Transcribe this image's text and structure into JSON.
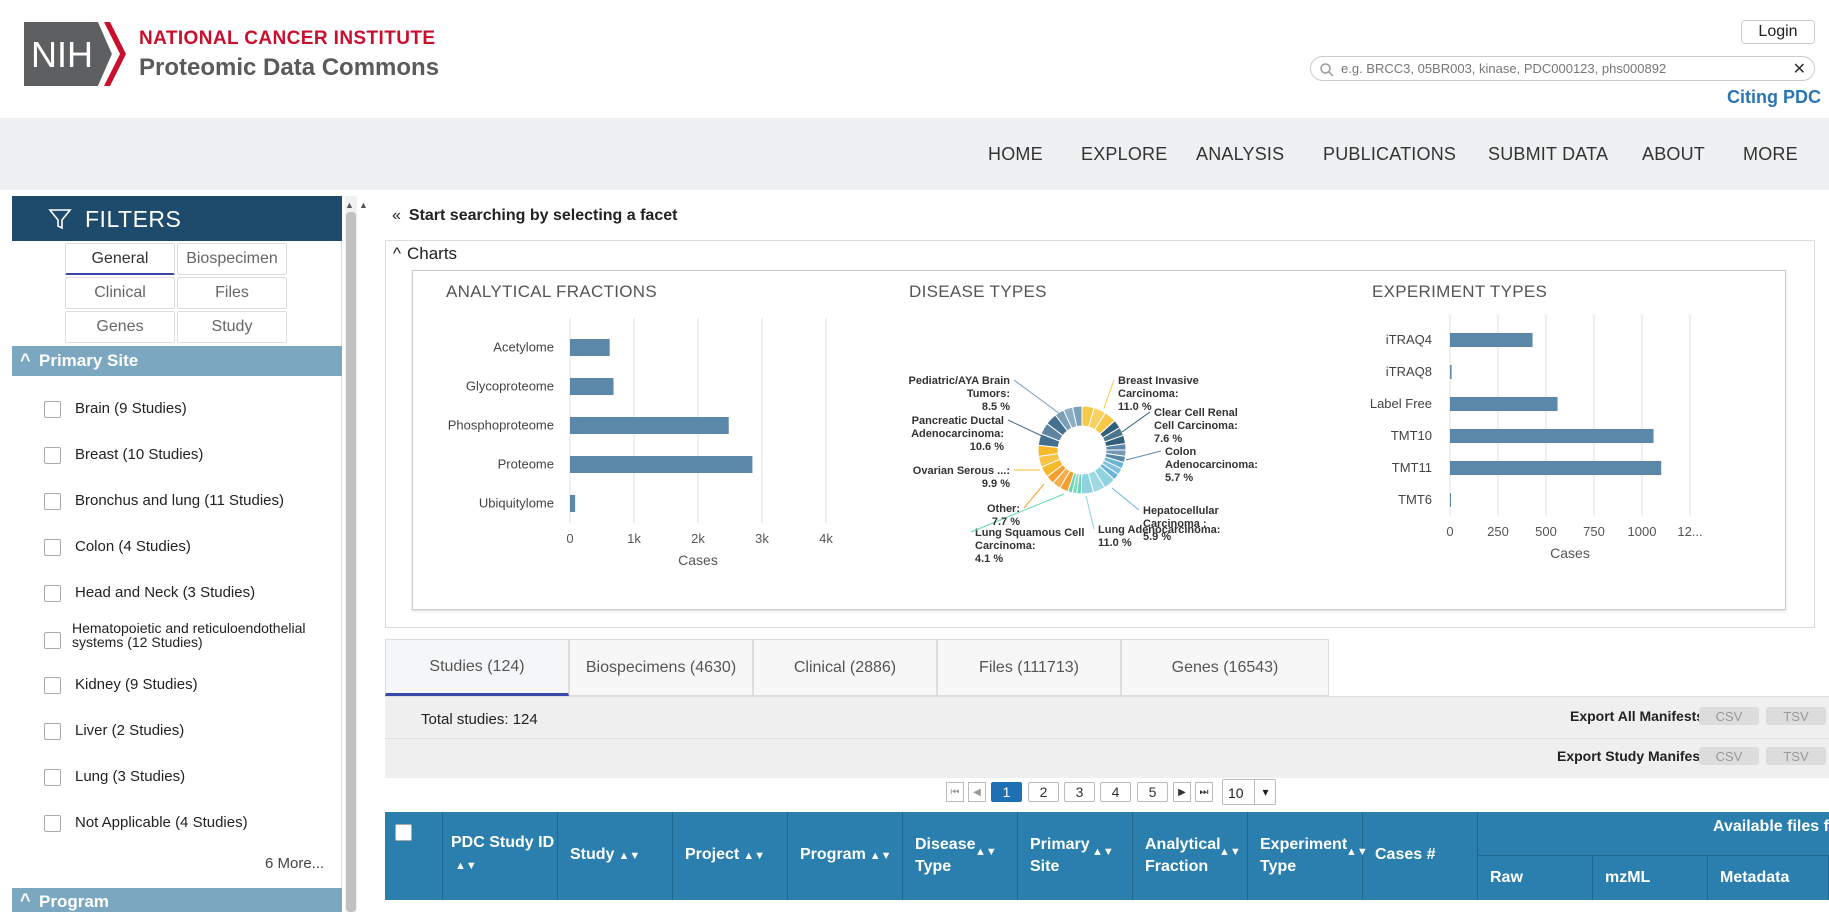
{
  "header": {
    "org": "NATIONAL CANCER INSTITUTE",
    "site": "Proteomic Data Commons",
    "login": "Login",
    "search_placeholder": "e.g. BRCC3, 05BR003, kinase, PDC000123, phs000892",
    "citing": "Citing PDC",
    "logo_text": "NIH"
  },
  "nav": [
    "HOME",
    "EXPLORE",
    "ANALYSIS",
    "PUBLICATIONS",
    "SUBMIT DATA",
    "ABOUT",
    "MORE"
  ],
  "sidebar": {
    "title": "FILTERS",
    "tabs": [
      "General",
      "Biospecimen",
      "Clinical",
      "Files",
      "Genes",
      "Study"
    ],
    "primary_site_label": "Primary Site",
    "sites": [
      "Brain (9 Studies)",
      "Breast (10 Studies)",
      "Bronchus and lung (11 Studies)",
      "Colon (4 Studies)",
      "Head and Neck (3 Studies)",
      "Hematopoietic and reticuloendothelial systems (12 Studies)",
      "Kidney (9 Studies)",
      "Liver (2 Studies)",
      "Lung (3 Studies)",
      "Not Applicable (4 Studies)"
    ],
    "more": "6 More...",
    "program_label": "Program"
  },
  "main": {
    "facet_hint": "Start searching by selecting a facet",
    "charts_label": "Charts"
  },
  "chart_data": [
    {
      "type": "bar",
      "title": "ANALYTICAL FRACTIONS",
      "categories": [
        "Acetylome",
        "Glycoproteome",
        "Phosphoproteome",
        "Proteome",
        "Ubiquitylome"
      ],
      "values": [
        620,
        680,
        2480,
        2850,
        80
      ],
      "xlabel": "Cases",
      "xlim": [
        0,
        4000
      ],
      "ticks": [
        "0",
        "1k",
        "2k",
        "3k",
        "4k"
      ],
      "bar_color": "#5b87a8"
    },
    {
      "type": "pie",
      "title": "DISEASE TYPES",
      "slices": [
        {
          "label": "Breast Invasive Carcinoma:",
          "pct": "11.0 %",
          "value": 11.0
        },
        {
          "label": "Clear Cell Renal Cell Carcinoma:",
          "pct": "7.6 %",
          "value": 7.6
        },
        {
          "label": "Colon Adenocarcinoma:",
          "pct": "5.7 %",
          "value": 5.7
        },
        {
          "label": "Hepatocellular Carcinoma :",
          "pct": "5.9 %",
          "value": 5.9
        },
        {
          "label": "Lung Adenocarcinoma:",
          "pct": "11.0 %",
          "value": 11.0
        },
        {
          "label": "Lung Squamous Cell Carcinoma:",
          "pct": "4.1 %",
          "value": 4.1
        },
        {
          "label": "Other:",
          "pct": "7.7 %",
          "value": 7.7
        },
        {
          "label": "Ovarian Serous ...:",
          "pct": "9.9 %",
          "value": 9.9
        },
        {
          "label": "Pancreatic Ductal Adenocarcinoma:",
          "pct": "10.6 %",
          "value": 10.6
        },
        {
          "label": "Pediatric/AYA Brain Tumors:",
          "pct": "8.5 %",
          "value": 8.5
        }
      ]
    },
    {
      "type": "bar",
      "title": "EXPERIMENT TYPES",
      "categories": [
        "iTRAQ4",
        "iTRAQ8",
        "Label Free",
        "TMT10",
        "TMT11",
        "TMT6"
      ],
      "values": [
        430,
        8,
        560,
        1060,
        1100,
        2
      ],
      "xlabel": "Cases",
      "xlim": [
        0,
        1250
      ],
      "ticks": [
        "0",
        "250",
        "500",
        "750",
        "1000",
        "12..."
      ],
      "bar_color": "#5b87a8"
    }
  ],
  "tabs": [
    "Studies (124)",
    "Biospecimens (4630)",
    "Clinical (2886)",
    "Files (111713)",
    "Genes (16543)"
  ],
  "summary": {
    "total": "Total studies: 124",
    "export_all": "Export All Manifests",
    "export_study": "Export Study Manifest",
    "csv": "CSV",
    "tsv": "TSV"
  },
  "pager": {
    "pages": [
      "1",
      "2",
      "3",
      "4",
      "5"
    ],
    "size": "10"
  },
  "table": {
    "columns": [
      "PDC Study ID",
      "Study",
      "Project",
      "Program",
      "Disease Type",
      "Primary Site",
      "Analytical Fraction",
      "Experiment Type",
      "Cases #"
    ],
    "files_group": "Available files for",
    "file_cols": [
      "Raw",
      "mzML",
      "Metadata"
    ]
  },
  "colors": {
    "header_bar": "#1e4b6c",
    "section_bar": "#7ba7c1",
    "table_head": "#2a7fae",
    "active_tab": "#3949ab"
  }
}
